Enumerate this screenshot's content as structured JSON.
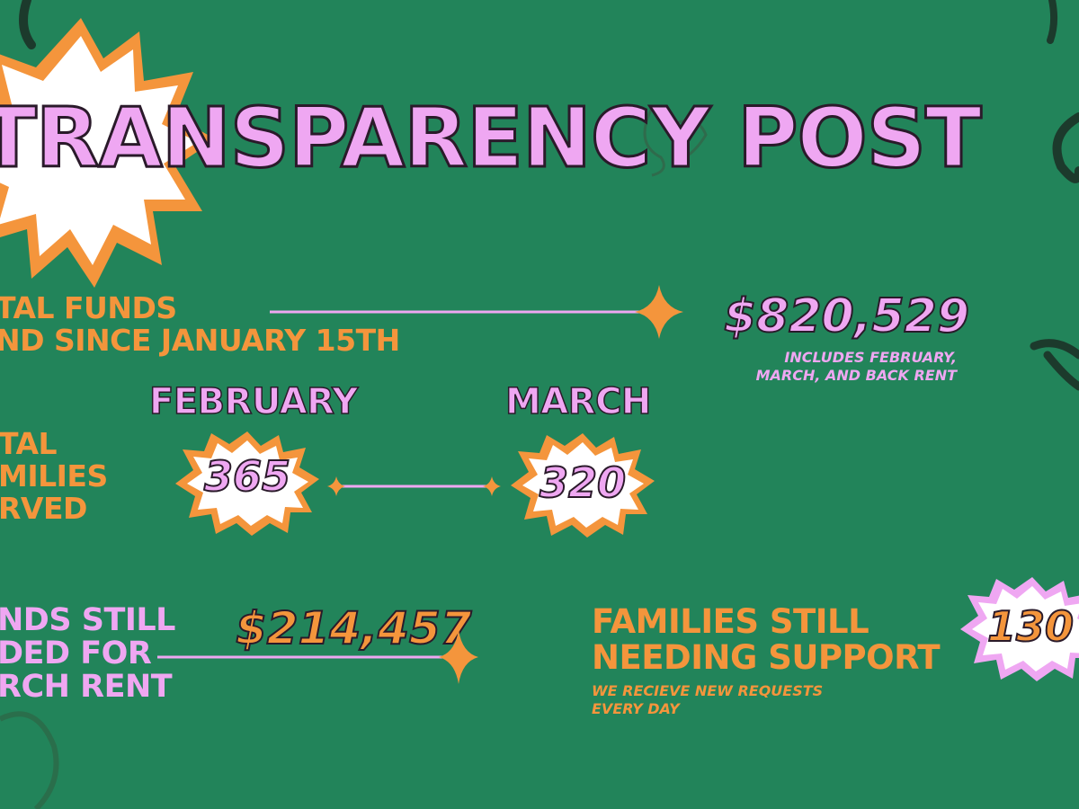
{
  "title": "TRANSPARENCY POST",
  "total_funds": {
    "label_line1": "TAL FUNDS",
    "label_line2": "ND SINCE JANUARY 15TH",
    "value": "$820,529",
    "note_line1": "INCLUDES FEBRUARY,",
    "note_line2": "MARCH, AND BACK RENT"
  },
  "families_served": {
    "label_line1": "TAL",
    "label_line2": "MILIES",
    "label_line3": "RVED",
    "february_label": "FEBRUARY",
    "february_value": "365",
    "march_label": "MARCH",
    "march_value": "320"
  },
  "funds_still_needed": {
    "label_line1": "NDS STILL",
    "label_line2": "DED FOR",
    "label_line3": "RCH RENT",
    "value": "$214,457"
  },
  "families_still_needing": {
    "label_line1": "FAMILIES STILL",
    "label_line2": "NEEDING SUPPORT",
    "note_line1": "WE RECIEVE NEW REQUESTS",
    "note_line2": "EVERY DAY",
    "value": "130"
  },
  "colors": {
    "background": "#22845A",
    "orange": "#F4953C",
    "pink": "#EFA7F2",
    "dark_outline": "#2a1a2a"
  }
}
